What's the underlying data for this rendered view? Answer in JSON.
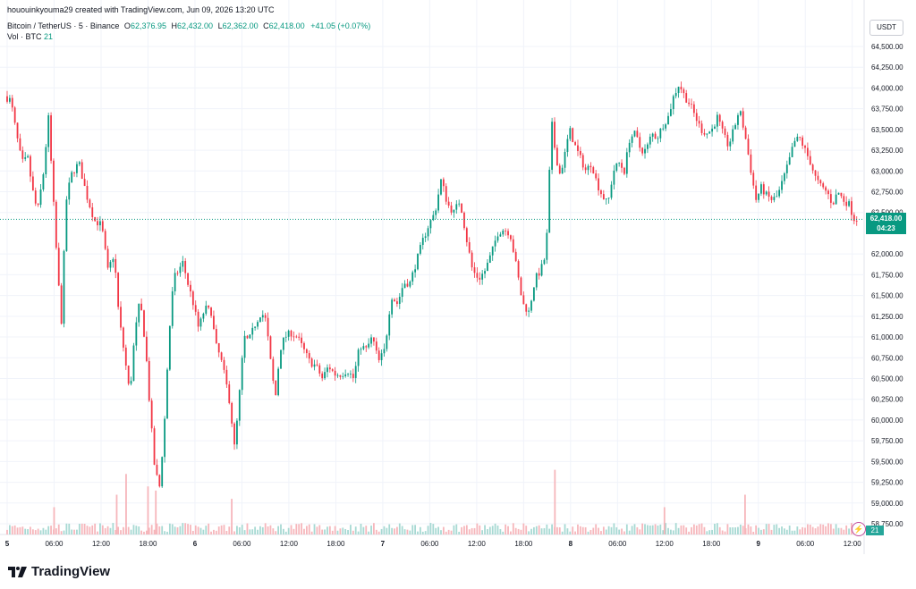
{
  "header": {
    "credit": "hououinkyouma29 created with TradingView.com, Jun 09, 2026 13:20 UTC",
    "symbol": "Bitcoin / TetherUS · 5 · Binance",
    "o_label": "O",
    "o_value": "62,376.95",
    "h_label": "H",
    "h_value": "62,432.00",
    "l_label": "L",
    "l_value": "62,362.00",
    "c_label": "C",
    "c_value": "62,418.00",
    "change": "+41.05 (+0.07%)",
    "volume_label": "Vol · BTC",
    "volume_value": "21"
  },
  "currency_label": "USDT",
  "last_price": {
    "price": "62,418.00",
    "countdown": "04:23"
  },
  "volume_last": "21",
  "brand": "TradingView",
  "colors": {
    "up": "#089981",
    "down": "#f23645",
    "volume_up": "#a7d9d3",
    "volume_down": "#f6b6bb",
    "grid": "#f0f3fa",
    "last_price_line": "#089981"
  },
  "chart_data": {
    "type": "candlestick",
    "ylim": [
      58500,
      64750
    ],
    "y_ticks": [
      "64,500.00",
      "64,250.00",
      "64,000.00",
      "63,750.00",
      "63,500.00",
      "63,250.00",
      "63,000.00",
      "62,750.00",
      "62,500.00",
      "62,000.00",
      "61,750.00",
      "61,500.00",
      "61,250.00",
      "61,000.00",
      "60,750.00",
      "60,500.00",
      "60,250.00",
      "60,000.00",
      "59,750.00",
      "59,500.00",
      "59,250.00",
      "59,000.00",
      "58,750.00"
    ],
    "x_ticks": [
      "5",
      "06:00",
      "12:00",
      "18:00",
      "6",
      "06:00",
      "12:00",
      "18:00",
      "7",
      "06:00",
      "12:00",
      "18:00",
      "8",
      "06:00",
      "12:00",
      "18:00",
      "9",
      "06:00",
      "12:00"
    ],
    "x_tick_values": [
      0,
      6,
      12,
      18,
      24,
      30,
      36,
      42,
      48,
      54,
      60,
      66,
      72,
      78,
      84,
      90,
      96,
      102,
      108
    ],
    "x_range_hours": [
      -0.3,
      110.2
    ],
    "price_path": [
      [
        0,
        63900
      ],
      [
        0.8,
        63850
      ],
      [
        1.5,
        63450
      ],
      [
        2.2,
        63100
      ],
      [
        3,
        63150
      ],
      [
        3.5,
        62800
      ],
      [
        4.2,
        62500
      ],
      [
        5,
        63000
      ],
      [
        5.6,
        63650
      ],
      [
        6.2,
        62700
      ],
      [
        6.8,
        61750
      ],
      [
        7.3,
        61150
      ],
      [
        7.8,
        62600
      ],
      [
        8.5,
        62950
      ],
      [
        9.5,
        63100
      ],
      [
        10.5,
        62700
      ],
      [
        11.5,
        62400
      ],
      [
        12.4,
        62350
      ],
      [
        13.2,
        61800
      ],
      [
        14,
        62000
      ],
      [
        14.6,
        61250
      ],
      [
        15.3,
        60800
      ],
      [
        16,
        60300
      ],
      [
        16.6,
        61000
      ],
      [
        17.3,
        61450
      ],
      [
        18,
        60900
      ],
      [
        18.6,
        60100
      ],
      [
        19.2,
        59400
      ],
      [
        19.8,
        59200
      ],
      [
        20.4,
        59900
      ],
      [
        21,
        61000
      ],
      [
        21.6,
        61700
      ],
      [
        22.2,
        61800
      ],
      [
        22.8,
        61900
      ],
      [
        23.4,
        61650
      ],
      [
        24,
        61450
      ],
      [
        24.8,
        61100
      ],
      [
        25.6,
        61350
      ],
      [
        26.4,
        61300
      ],
      [
        27,
        60900
      ],
      [
        27.6,
        60750
      ],
      [
        28.2,
        60500
      ],
      [
        28.8,
        60200
      ],
      [
        29.4,
        59650
      ],
      [
        30,
        60300
      ],
      [
        30.6,
        61000
      ],
      [
        31.2,
        60950
      ],
      [
        32,
        61150
      ],
      [
        32.8,
        61300
      ],
      [
        33.4,
        61200
      ],
      [
        34,
        60700
      ],
      [
        34.6,
        60250
      ],
      [
        35.2,
        60850
      ],
      [
        35.8,
        61000
      ],
      [
        36.6,
        61050
      ],
      [
        37.4,
        61000
      ],
      [
        38.2,
        60850
      ],
      [
        39,
        60700
      ],
      [
        39.8,
        60650
      ],
      [
        40.6,
        60500
      ],
      [
        41.4,
        60650
      ],
      [
        42.2,
        60550
      ],
      [
        43,
        60550
      ],
      [
        43.8,
        60600
      ],
      [
        44.6,
        60500
      ],
      [
        45.4,
        60900
      ],
      [
        46.2,
        60850
      ],
      [
        47,
        61000
      ],
      [
        47.8,
        60700
      ],
      [
        48.6,
        60850
      ],
      [
        49.4,
        61500
      ],
      [
        50.2,
        61400
      ],
      [
        51,
        61650
      ],
      [
        51.8,
        61650
      ],
      [
        52.6,
        61900
      ],
      [
        53.4,
        62150
      ],
      [
        54.2,
        62350
      ],
      [
        55,
        62500
      ],
      [
        55.8,
        62900
      ],
      [
        56.6,
        62600
      ],
      [
        57.4,
        62500
      ],
      [
        58.2,
        62650
      ],
      [
        59,
        62200
      ],
      [
        59.8,
        61800
      ],
      [
        60.6,
        61700
      ],
      [
        61.4,
        61800
      ],
      [
        62.2,
        62000
      ],
      [
        63,
        62250
      ],
      [
        63.8,
        62300
      ],
      [
        64.6,
        62250
      ],
      [
        65.4,
        61850
      ],
      [
        66.2,
        61400
      ],
      [
        67,
        61300
      ],
      [
        67.8,
        61700
      ],
      [
        68.5,
        61800
      ],
      [
        69.2,
        62000
      ],
      [
        69.9,
        63600
      ],
      [
        70.4,
        63200
      ],
      [
        71,
        62950
      ],
      [
        71.6,
        63200
      ],
      [
        72.2,
        63500
      ],
      [
        72.9,
        63300
      ],
      [
        73.6,
        63150
      ],
      [
        74.3,
        63000
      ],
      [
        75,
        63100
      ],
      [
        75.7,
        62850
      ],
      [
        76.4,
        62700
      ],
      [
        77.1,
        62600
      ],
      [
        77.8,
        63000
      ],
      [
        78.5,
        63100
      ],
      [
        79.2,
        63000
      ],
      [
        79.9,
        63400
      ],
      [
        80.6,
        63450
      ],
      [
        81.3,
        63250
      ],
      [
        82,
        63250
      ],
      [
        82.7,
        63450
      ],
      [
        83.4,
        63400
      ],
      [
        84.1,
        63550
      ],
      [
        84.8,
        63650
      ],
      [
        85.5,
        63900
      ],
      [
        86.2,
        64050
      ],
      [
        86.9,
        63900
      ],
      [
        87.6,
        63800
      ],
      [
        88.3,
        63650
      ],
      [
        89,
        63500
      ],
      [
        89.7,
        63450
      ],
      [
        90.4,
        63500
      ],
      [
        91.1,
        63650
      ],
      [
        91.8,
        63450
      ],
      [
        92.5,
        63300
      ],
      [
        93.2,
        63500
      ],
      [
        93.9,
        63750
      ],
      [
        94.6,
        63450
      ],
      [
        95.3,
        63050
      ],
      [
        96,
        62650
      ],
      [
        96.7,
        62800
      ],
      [
        97.4,
        62700
      ],
      [
        98.1,
        62650
      ],
      [
        98.8,
        62700
      ],
      [
        99.5,
        62900
      ],
      [
        100.2,
        63100
      ],
      [
        100.9,
        63350
      ],
      [
        101.6,
        63400
      ],
      [
        102.3,
        63250
      ],
      [
        103,
        63100
      ],
      [
        103.7,
        62900
      ],
      [
        104.4,
        62800
      ],
      [
        105.1,
        62750
      ],
      [
        105.8,
        62600
      ],
      [
        106.5,
        62750
      ],
      [
        107.2,
        62650
      ],
      [
        107.9,
        62600
      ],
      [
        108.6,
        62418
      ]
    ],
    "volume_spikes": [
      [
        6,
        58.95
      ],
      [
        14,
        59.1
      ],
      [
        15.2,
        59.35
      ],
      [
        18,
        59.2
      ],
      [
        19,
        59.15
      ],
      [
        28.7,
        59.05
      ],
      [
        70,
        59.4
      ],
      [
        84,
        58.95
      ],
      [
        94.3,
        59.1
      ]
    ]
  }
}
